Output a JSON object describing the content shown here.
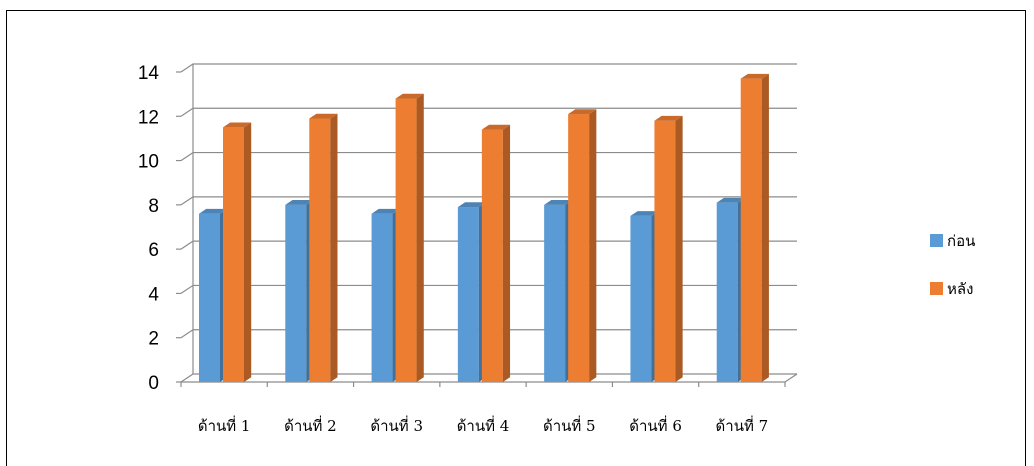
{
  "chart_data": {
    "type": "bar",
    "categories": [
      "ด้านที่ 1",
      "ด้านที่ 2",
      "ด้านที่ 3",
      "ด้านที่ 4",
      "ด้านที่ 5",
      "ด้านที่ 6",
      "ด้านที่ 7"
    ],
    "series": [
      {
        "name": "ก่อน",
        "color": "#5B9BD5",
        "values": [
          7.6,
          8.0,
          7.6,
          7.9,
          8.0,
          7.5,
          8.1
        ]
      },
      {
        "name": "หลัง",
        "color": "#ED7D31",
        "values": [
          11.5,
          11.9,
          12.8,
          11.4,
          12.1,
          11.8,
          13.7
        ]
      }
    ],
    "ylim": [
      0,
      14
    ],
    "yticks": [
      0,
      2,
      4,
      6,
      8,
      10,
      12,
      14
    ],
    "grid": true,
    "legend_position": "right",
    "style": "3d-column"
  }
}
